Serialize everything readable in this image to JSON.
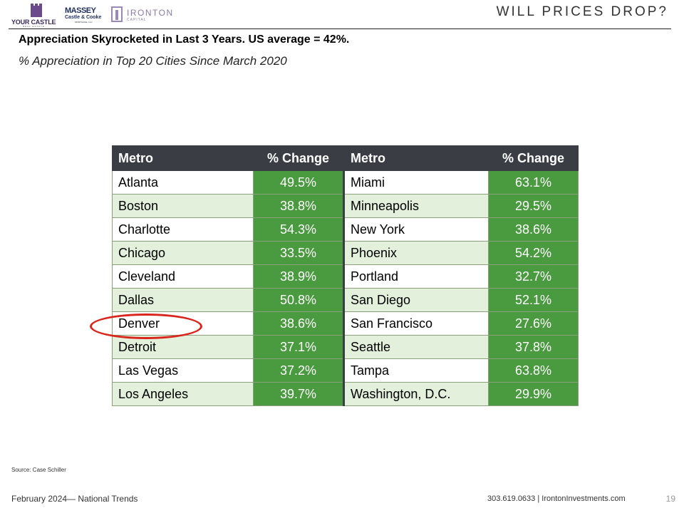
{
  "logos": {
    "your_castle": "YOUR CASTLE",
    "your_castle_sub": "REAL ESTATE",
    "massey_top": "MASSEY",
    "massey_mid": "Castle & Cooke",
    "massey_bottom": "MORTGAGE, LLC",
    "ironton_top": "IRONTON",
    "ironton_bottom": "CAPITAL"
  },
  "slide": {
    "title": "WILL PRICES DROP?",
    "headline": "Appreciation Skyrocketed in Last 3 Years.  US average = 42%.",
    "subhead": "% Appreciation in Top 20 Cities Since March 2020"
  },
  "table": {
    "headers": [
      "Metro",
      "% Change",
      "Metro",
      "% Change"
    ],
    "rows": [
      {
        "metro1": "Atlanta",
        "pct1": "49.5%",
        "metro2": "Miami",
        "pct2": "63.1%"
      },
      {
        "metro1": "Boston",
        "pct1": "38.8%",
        "metro2": "Minneapolis",
        "pct2": "29.5%"
      },
      {
        "metro1": "Charlotte",
        "pct1": "54.3%",
        "metro2": "New York",
        "pct2": "38.6%"
      },
      {
        "metro1": "Chicago",
        "pct1": "33.5%",
        "metro2": "Phoenix",
        "pct2": "54.2%"
      },
      {
        "metro1": "Cleveland",
        "pct1": "38.9%",
        "metro2": "Portland",
        "pct2": "32.7%"
      },
      {
        "metro1": "Dallas",
        "pct1": "50.8%",
        "metro2": "San Diego",
        "pct2": "52.1%"
      },
      {
        "metro1": "Denver",
        "pct1": "38.6%",
        "metro2": "San Francisco",
        "pct2": "27.6%"
      },
      {
        "metro1": "Detroit",
        "pct1": "37.1%",
        "metro2": "Seattle",
        "pct2": "37.8%"
      },
      {
        "metro1": "Las Vegas",
        "pct1": "37.2%",
        "metro2": "Tampa",
        "pct2": "63.8%"
      },
      {
        "metro1": "Los Angeles",
        "pct1": "39.7%",
        "metro2": "Washington, D.C.",
        "pct2": "29.9%"
      }
    ]
  },
  "colors": {
    "header_bg": "#3a3d43",
    "value_bg": "#4a9a3f",
    "alt_row_bg": "#e2f0dc",
    "highlight_circle": "#d9251c"
  },
  "source": "Source: Case Schiller",
  "footer": {
    "left": "February 2024— National Trends",
    "right": "303.619.0633 | IrontonInvestments.com",
    "page": "19"
  }
}
